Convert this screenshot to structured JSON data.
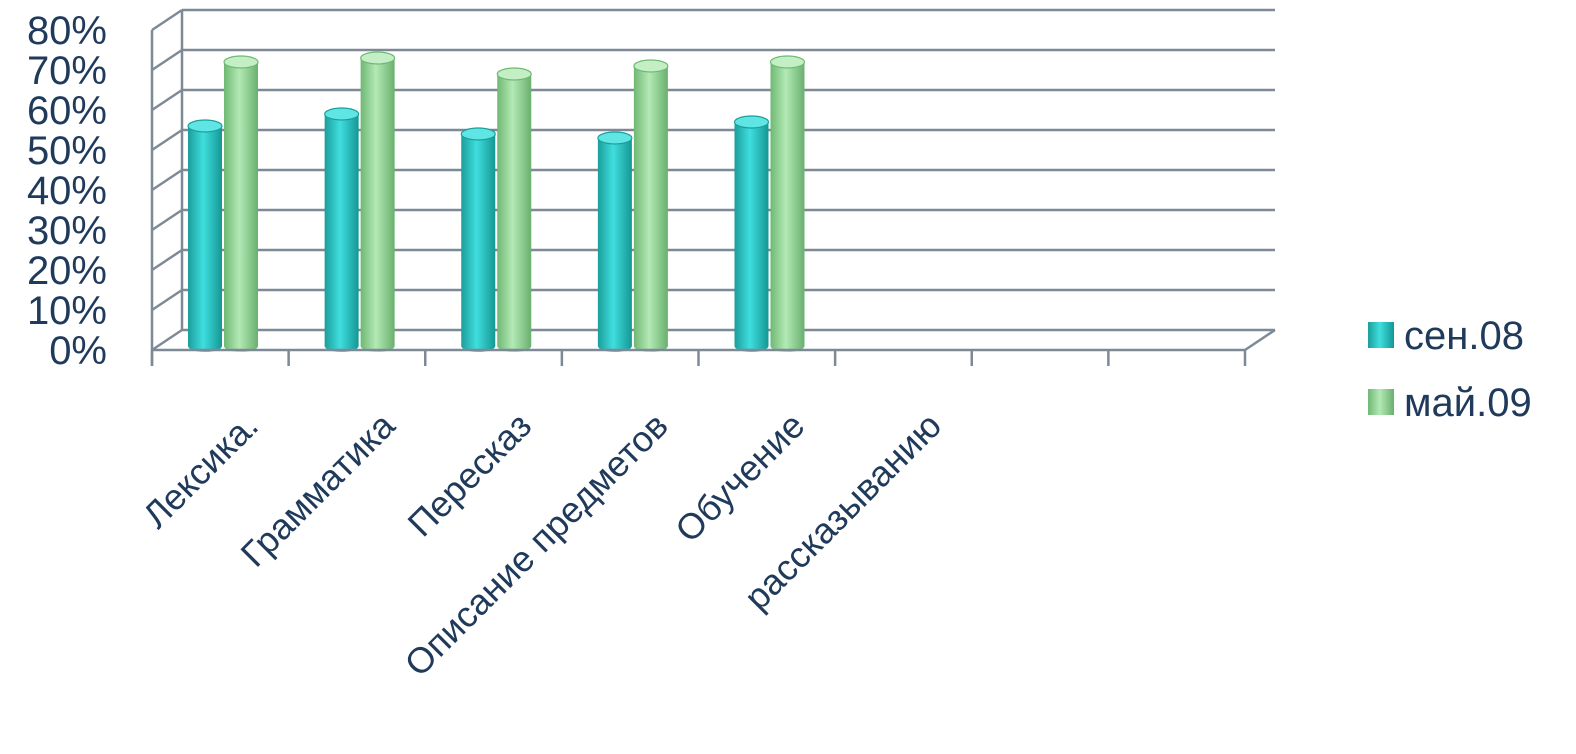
{
  "chart_data": {
    "type": "bar",
    "categories": [
      "Лексика.",
      "Грамматика",
      "Пересказ",
      "Описание предметов",
      "Обучение",
      "рассказыванию",
      "",
      ""
    ],
    "series": [
      {
        "name": "сен.08",
        "color": "#2ec9c6",
        "values": [
          0.56,
          0.59,
          0.54,
          0.53,
          0.57,
          null,
          null,
          null
        ]
      },
      {
        "name": "май.09",
        "color": "#8fd494",
        "values": [
          0.72,
          0.73,
          0.69,
          0.71,
          0.72,
          null,
          null,
          null
        ]
      }
    ],
    "y_ticks": [
      "0%",
      "10%",
      "20%",
      "30%",
      "40%",
      "50%",
      "60%",
      "70%",
      "80%"
    ],
    "ylim": [
      0,
      0.8
    ],
    "grid": true,
    "legend_position": "right",
    "style": "3d-cylinder"
  }
}
